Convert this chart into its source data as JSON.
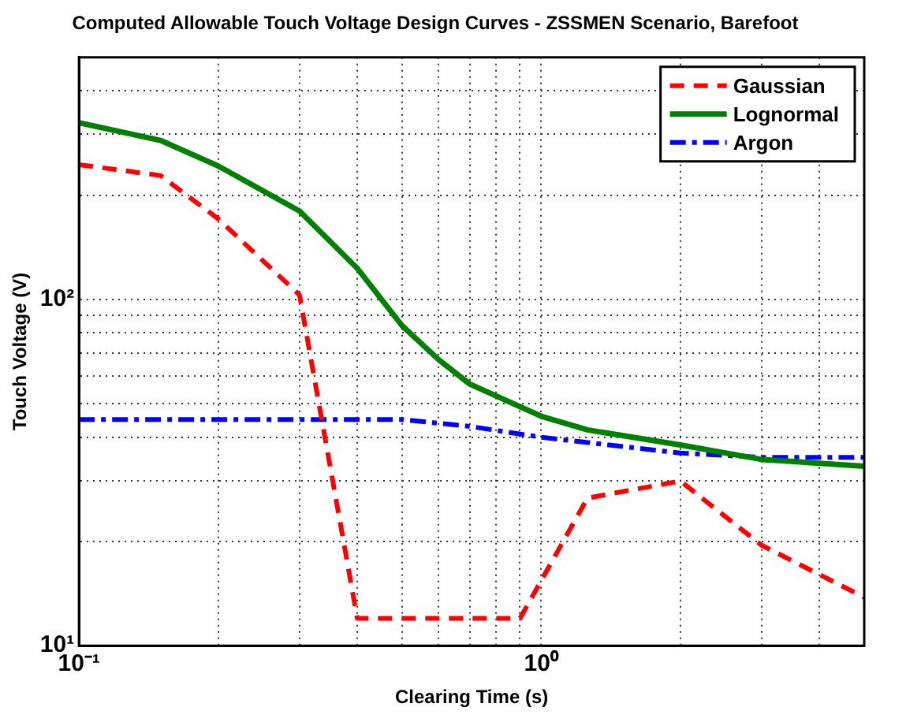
{
  "chart_data": {
    "type": "line",
    "title": "Computed Allowable Touch Voltage Design Curves - ZSSMEN Scenario, Barefoot",
    "xlabel": "Clearing Time (s)",
    "ylabel": "Touch Voltage (V)",
    "log": "xy",
    "grid": true,
    "legend": "top right",
    "marker": "none",
    "xlim": [
      0.1,
      5
    ],
    "ylim": [
      10,
      500
    ],
    "xticks": [
      {
        "value": 0.1,
        "label": "10⁻¹"
      },
      {
        "value": 0.2,
        "label": null
      },
      {
        "value": 0.3,
        "label": null
      },
      {
        "value": 0.4,
        "label": null
      },
      {
        "value": 0.5,
        "label": null
      },
      {
        "value": 0.6,
        "label": null
      },
      {
        "value": 0.7,
        "label": null
      },
      {
        "value": 0.8,
        "label": null
      },
      {
        "value": 0.9,
        "label": null
      },
      {
        "value": 1,
        "label": "10⁰"
      },
      {
        "value": 2,
        "label": null
      },
      {
        "value": 3,
        "label": null
      },
      {
        "value": 4,
        "label": null
      },
      {
        "value": 5,
        "label": null
      }
    ],
    "yticks": [
      {
        "value": 10,
        "label": "10¹"
      },
      {
        "value": 20,
        "label": null
      },
      {
        "value": 30,
        "label": null
      },
      {
        "value": 40,
        "label": null
      },
      {
        "value": 50,
        "label": null
      },
      {
        "value": 60,
        "label": null
      },
      {
        "value": 70,
        "label": null
      },
      {
        "value": 80,
        "label": null
      },
      {
        "value": 90,
        "label": null
      },
      {
        "value": 100,
        "label": "10²"
      },
      {
        "value": 200,
        "label": null
      },
      {
        "value": 300,
        "label": null
      },
      {
        "value": 400,
        "label": null
      },
      {
        "value": 500,
        "label": null
      }
    ],
    "series": [
      {
        "name": "Gaussian",
        "color": "#ff0000",
        "line_style": "dashed",
        "x": [
          0.1,
          0.15,
          0.2,
          0.3,
          0.4,
          0.5,
          0.6,
          0.7,
          0.8,
          0.9,
          1.26,
          2,
          3,
          5
        ],
        "values": [
          245,
          228,
          171,
          103,
          12,
          12,
          12,
          12,
          12,
          12,
          26.7,
          29.9,
          19.5,
          13.8
        ]
      },
      {
        "name": "Lognormal",
        "color": "#008000",
        "line_style": "solid",
        "x": [
          0.1,
          0.15,
          0.2,
          0.3,
          0.4,
          0.5,
          0.6,
          0.7,
          1,
          1.26,
          2,
          3,
          5
        ],
        "values": [
          324,
          288,
          243,
          180,
          123,
          84,
          67,
          57,
          46,
          42,
          38,
          34.5,
          33
        ]
      },
      {
        "name": "Argon",
        "color": "#0000ff",
        "line_style": "dashdot",
        "x": [
          0.1,
          0.5,
          0.7,
          1,
          2,
          3,
          5
        ],
        "values": [
          45,
          45,
          43,
          40,
          36,
          35,
          35
        ]
      }
    ]
  }
}
